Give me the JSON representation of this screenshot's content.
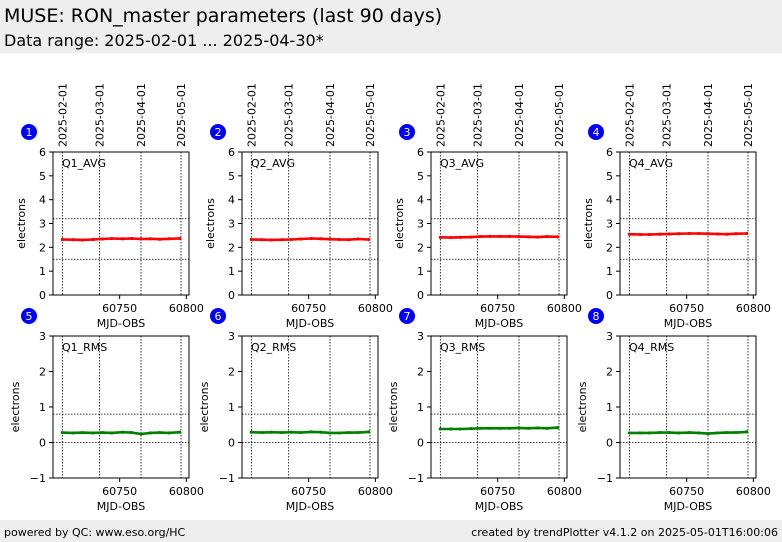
{
  "header": {
    "title": "MUSE: RON_master parameters (last 90 days)",
    "subtitle": "Data range: 2025-02-01 ... 2025-04-30*"
  },
  "footer": {
    "left": "powered by QC: www.eso.org/HC",
    "right": "created by trendPlotter v4.1.2 on 2025-05-01T16:00:06"
  },
  "date_labels": [
    "2025-02-01",
    "2025-03-01",
    "2025-04-01",
    "2025-05-01"
  ],
  "colors": {
    "avg": "#ff0000",
    "rms": "#008000",
    "badge": "#0000ff"
  },
  "chart_data": [
    {
      "type": "line",
      "badge": "1",
      "label": "Q1_AVG",
      "xlabel": "MJD-OBS",
      "ylabel": "electrons",
      "xlim": [
        60700,
        60802
      ],
      "ylim": [
        0,
        6
      ],
      "xticks": [
        60750,
        60800
      ],
      "yticks": [
        0,
        1,
        2,
        3,
        4,
        5,
        6
      ],
      "ref_lines": [
        1.5,
        3.2
      ],
      "date_mjd": [
        60707,
        60735,
        60766,
        60796
      ],
      "series": [
        {
          "x": [
            60707,
            60715,
            60722,
            60730,
            60737,
            60744,
            60752,
            60759,
            60766,
            60773,
            60780,
            60787,
            60795
          ],
          "y": [
            2.33,
            2.32,
            2.31,
            2.33,
            2.35,
            2.37,
            2.36,
            2.37,
            2.35,
            2.36,
            2.34,
            2.36,
            2.37
          ]
        }
      ]
    },
    {
      "type": "line",
      "badge": "2",
      "label": "Q2_AVG",
      "xlabel": "MJD-OBS",
      "ylabel": "electrons",
      "xlim": [
        60700,
        60802
      ],
      "ylim": [
        0,
        6
      ],
      "xticks": [
        60750,
        60800
      ],
      "yticks": [
        0,
        1,
        2,
        3,
        4,
        5,
        6
      ],
      "ref_lines": [
        1.5,
        3.2
      ],
      "date_mjd": [
        60707,
        60735,
        60766,
        60796
      ],
      "series": [
        {
          "x": [
            60707,
            60715,
            60722,
            60730,
            60737,
            60744,
            60752,
            60759,
            60766,
            60773,
            60780,
            60787,
            60795
          ],
          "y": [
            2.33,
            2.32,
            2.31,
            2.32,
            2.33,
            2.35,
            2.37,
            2.36,
            2.34,
            2.33,
            2.32,
            2.35,
            2.33
          ]
        }
      ]
    },
    {
      "type": "line",
      "badge": "3",
      "label": "Q3_AVG",
      "xlabel": "MJD-OBS",
      "ylabel": "electrons",
      "xlim": [
        60700,
        60802
      ],
      "ylim": [
        0,
        6
      ],
      "xticks": [
        60750,
        60800
      ],
      "yticks": [
        0,
        1,
        2,
        3,
        4,
        5,
        6
      ],
      "ref_lines": [
        1.5,
        3.2
      ],
      "date_mjd": [
        60707,
        60735,
        60766,
        60796
      ],
      "series": [
        {
          "x": [
            60707,
            60715,
            60722,
            60730,
            60737,
            60744,
            60752,
            60759,
            60766,
            60773,
            60780,
            60787,
            60795
          ],
          "y": [
            2.42,
            2.41,
            2.42,
            2.43,
            2.45,
            2.46,
            2.46,
            2.46,
            2.45,
            2.44,
            2.43,
            2.45,
            2.44
          ]
        }
      ]
    },
    {
      "type": "line",
      "badge": "4",
      "label": "Q4_AVG",
      "xlabel": "MJD-OBS",
      "ylabel": "electrons",
      "xlim": [
        60700,
        60802
      ],
      "ylim": [
        0,
        6
      ],
      "xticks": [
        60750,
        60800
      ],
      "yticks": [
        0,
        1,
        2,
        3,
        4,
        5,
        6
      ],
      "ref_lines": [
        1.5,
        3.2
      ],
      "date_mjd": [
        60707,
        60735,
        60766,
        60796
      ],
      "series": [
        {
          "x": [
            60707,
            60715,
            60722,
            60730,
            60737,
            60744,
            60752,
            60759,
            60766,
            60773,
            60780,
            60787,
            60795
          ],
          "y": [
            2.55,
            2.54,
            2.54,
            2.55,
            2.56,
            2.57,
            2.58,
            2.58,
            2.57,
            2.56,
            2.55,
            2.57,
            2.58
          ]
        }
      ]
    },
    {
      "type": "line",
      "badge": "5",
      "label": "Q1_RMS",
      "xlabel": "MJD-OBS",
      "ylabel": "electrons",
      "xlim": [
        60700,
        60802
      ],
      "ylim": [
        -1,
        3
      ],
      "xticks": [
        60750,
        60800
      ],
      "yticks": [
        -1,
        0,
        1,
        2,
        3
      ],
      "ref_lines": [
        0,
        0.8
      ],
      "date_mjd": [
        60707,
        60735,
        60766,
        60796
      ],
      "series": [
        {
          "x": [
            60707,
            60715,
            60722,
            60730,
            60737,
            60744,
            60752,
            60759,
            60766,
            60773,
            60780,
            60787,
            60795
          ],
          "y": [
            0.28,
            0.27,
            0.28,
            0.27,
            0.28,
            0.27,
            0.29,
            0.28,
            0.24,
            0.27,
            0.28,
            0.27,
            0.29
          ]
        }
      ]
    },
    {
      "type": "line",
      "badge": "6",
      "label": "Q2_RMS",
      "xlabel": "MJD-OBS",
      "ylabel": "electrons",
      "xlim": [
        60700,
        60802
      ],
      "ylim": [
        -1,
        3
      ],
      "xticks": [
        60750,
        60800
      ],
      "yticks": [
        -1,
        0,
        1,
        2,
        3
      ],
      "ref_lines": [
        0,
        0.8
      ],
      "date_mjd": [
        60707,
        60735,
        60766,
        60796
      ],
      "series": [
        {
          "x": [
            60707,
            60715,
            60722,
            60730,
            60737,
            60744,
            60752,
            60759,
            60766,
            60773,
            60780,
            60787,
            60795
          ],
          "y": [
            0.29,
            0.28,
            0.29,
            0.28,
            0.29,
            0.28,
            0.3,
            0.29,
            0.27,
            0.27,
            0.28,
            0.28,
            0.3
          ]
        }
      ]
    },
    {
      "type": "line",
      "badge": "7",
      "label": "Q3_RMS",
      "xlabel": "MJD-OBS",
      "ylabel": "electrons",
      "xlim": [
        60700,
        60802
      ],
      "ylim": [
        -1,
        3
      ],
      "xticks": [
        60750,
        60800
      ],
      "yticks": [
        -1,
        0,
        1,
        2,
        3
      ],
      "ref_lines": [
        0,
        0.8
      ],
      "date_mjd": [
        60707,
        60735,
        60766,
        60796
      ],
      "series": [
        {
          "x": [
            60707,
            60715,
            60722,
            60730,
            60737,
            60744,
            60752,
            60759,
            60766,
            60773,
            60780,
            60787,
            60795
          ],
          "y": [
            0.38,
            0.38,
            0.38,
            0.39,
            0.4,
            0.4,
            0.4,
            0.4,
            0.41,
            0.4,
            0.41,
            0.4,
            0.42
          ]
        }
      ]
    },
    {
      "type": "line",
      "badge": "8",
      "label": "Q4_RMS",
      "xlabel": "MJD-OBS",
      "ylabel": "electrons",
      "xlim": [
        60700,
        60802
      ],
      "ylim": [
        -1,
        3
      ],
      "xticks": [
        60750,
        60800
      ],
      "yticks": [
        -1,
        0,
        1,
        2,
        3
      ],
      "ref_lines": [
        0,
        0.8
      ],
      "date_mjd": [
        60707,
        60735,
        60766,
        60796
      ],
      "series": [
        {
          "x": [
            60707,
            60715,
            60722,
            60730,
            60737,
            60744,
            60752,
            60759,
            60766,
            60773,
            60780,
            60787,
            60795
          ],
          "y": [
            0.27,
            0.27,
            0.27,
            0.28,
            0.28,
            0.27,
            0.28,
            0.27,
            0.25,
            0.27,
            0.28,
            0.28,
            0.3
          ]
        }
      ]
    }
  ]
}
